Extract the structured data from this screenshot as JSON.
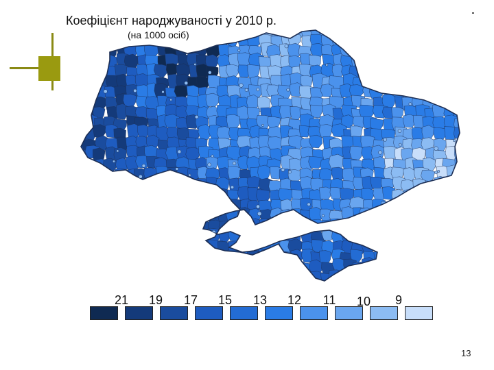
{
  "title": "Коефіцієнт народжуваності у 2010 р.",
  "subtitle": "(на 1000 осіб)",
  "page_number": "13",
  "colors": {
    "deco": "#9a9a10",
    "border": "#1d2f55"
  },
  "legend": {
    "items": [
      {
        "value": "21",
        "color": "#0f2a52"
      },
      {
        "value": "19",
        "color": "#143a7a"
      },
      {
        "value": "17",
        "color": "#1a4c9e"
      },
      {
        "value": "15",
        "color": "#1e5cc0"
      },
      {
        "value": "13",
        "color": "#236cd4"
      },
      {
        "value": "12",
        "color": "#2a7ce6"
      },
      {
        "value": "11",
        "color": "#4b92ec"
      },
      {
        "value": "10",
        "color": "#6aa6ef"
      },
      {
        "value": "9",
        "color": "#8cbcf3"
      },
      {
        "value": "",
        "color": "#c8defa"
      }
    ]
  }
}
